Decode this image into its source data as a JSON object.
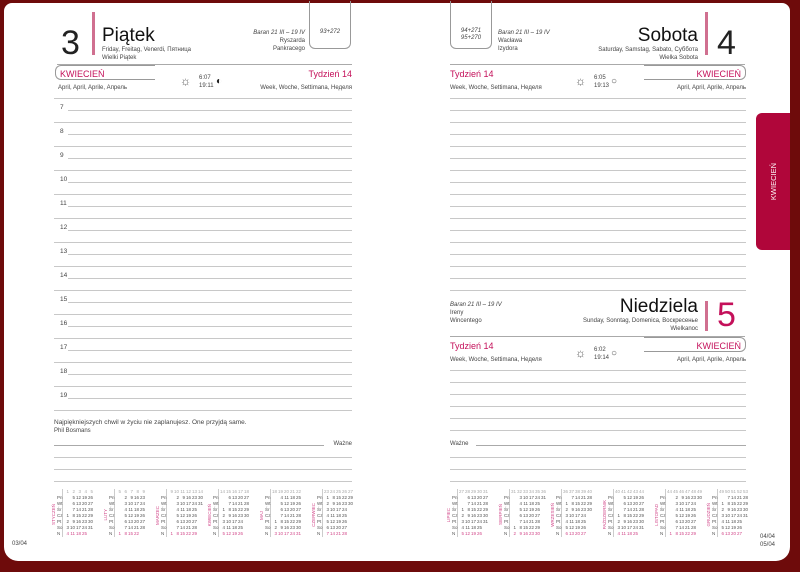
{
  "colors": {
    "frame": "#6e0b0b",
    "accent": "#c4105a",
    "tab": "#b0063a"
  },
  "left": {
    "day_number": "3",
    "day_name": "Piątek",
    "day_translations": "Friday, Freitag, Venerdi, Пятница",
    "holiday": "Wielki Piątek",
    "zodiac": "Baran 21 III – 19 IV",
    "namedays": [
      "Ryszarda",
      "Pankracego"
    ],
    "day_count": "93+272",
    "month": "KWIECIEŃ",
    "month_translations": "April, April, Aprile, Апрель",
    "sunrise": "6:07",
    "sunset": "19:11",
    "moon_icon": "moon-first-quarter",
    "week": "Tydzień 14",
    "week_translations": "Week, Woche, Settimana, Неделя",
    "hours": [
      "7",
      "8",
      "9",
      "10",
      "11",
      "12",
      "13",
      "14",
      "15",
      "16",
      "17",
      "18",
      "19"
    ],
    "quote": "Najpiękniejszych chwil w życiu nie zaplanujesz. One przyjdą same.",
    "quote_author": "Phil Bosmans",
    "important": "Ważne",
    "page_number": "03/04"
  },
  "right": {
    "day_number": "4",
    "day_name": "Sobota",
    "day_translations": "Saturday, Samstag, Sabato, Суббота",
    "holiday": "Wielka Sobota",
    "day_count": "94+271",
    "day_count_next": "95+270",
    "zodiac": "Baran 21 III – 19 IV",
    "namedays": [
      "Wacława",
      "Izydora"
    ],
    "week": "Tydzień 14",
    "week_translations": "Week, Woche, Settimana, Неделя",
    "sunrise": "6:05",
    "sunset": "19:13",
    "moon_icon": "moon-full",
    "month": "KWIECIEŃ",
    "month_translations": "April, April, Aprile, Апрель",
    "sunday": {
      "day_number": "5",
      "day_name": "Niedziela",
      "day_translations": "Sunday, Sonntag, Domenica, Воскресенье",
      "holiday": "Wielkanoc",
      "zodiac": "Baran 21 III – 19 IV",
      "namedays": [
        "Ireny",
        "Wincentego"
      ],
      "week": "Tydzień 14",
      "week_translations": "Week, Woche, Settimana, Неделя",
      "sunrise": "6:02",
      "sunset": "19:14",
      "month": "KWIECIEŃ",
      "month_translations": "April, April, Aprile, Апрель"
    },
    "important": "Ważne",
    "page_numbers": [
      "04/04",
      "05/04"
    ],
    "side_tab": "KWIECIEŃ"
  },
  "mini_calendar": {
    "weekday_labels": [
      "Pn",
      "Wt",
      "Śr",
      "Cz",
      "Pt",
      "So",
      "N"
    ],
    "months": [
      {
        "name": "STYCZEŃ",
        "first_weekday": 4,
        "days": 31,
        "first_week": 1
      },
      {
        "name": "LUTY",
        "first_weekday": 7,
        "days": 28,
        "first_week": 5
      },
      {
        "name": "MARZEC",
        "first_weekday": 7,
        "days": 31,
        "first_week": 9
      },
      {
        "name": "KWIECIEŃ",
        "first_weekday": 3,
        "days": 30,
        "first_week": 14
      },
      {
        "name": "MAJ",
        "first_weekday": 5,
        "days": 31,
        "first_week": 18
      },
      {
        "name": "CZERWIEC",
        "first_weekday": 1,
        "days": 30,
        "first_week": 23
      },
      {
        "name": "LIPIEC",
        "first_weekday": 3,
        "days": 31,
        "first_week": 27
      },
      {
        "name": "SIERPIEŃ",
        "first_weekday": 6,
        "days": 31,
        "first_week": 31
      },
      {
        "name": "WRZESIEŃ",
        "first_weekday": 2,
        "days": 30,
        "first_week": 36
      },
      {
        "name": "PAŹDZIERNIK",
        "first_weekday": 4,
        "days": 31,
        "first_week": 40
      },
      {
        "name": "LISTOPAD",
        "first_weekday": 7,
        "days": 30,
        "first_week": 44
      },
      {
        "name": "GRUDZIEŃ",
        "first_weekday": 2,
        "days": 31,
        "first_week": 49
      }
    ]
  }
}
